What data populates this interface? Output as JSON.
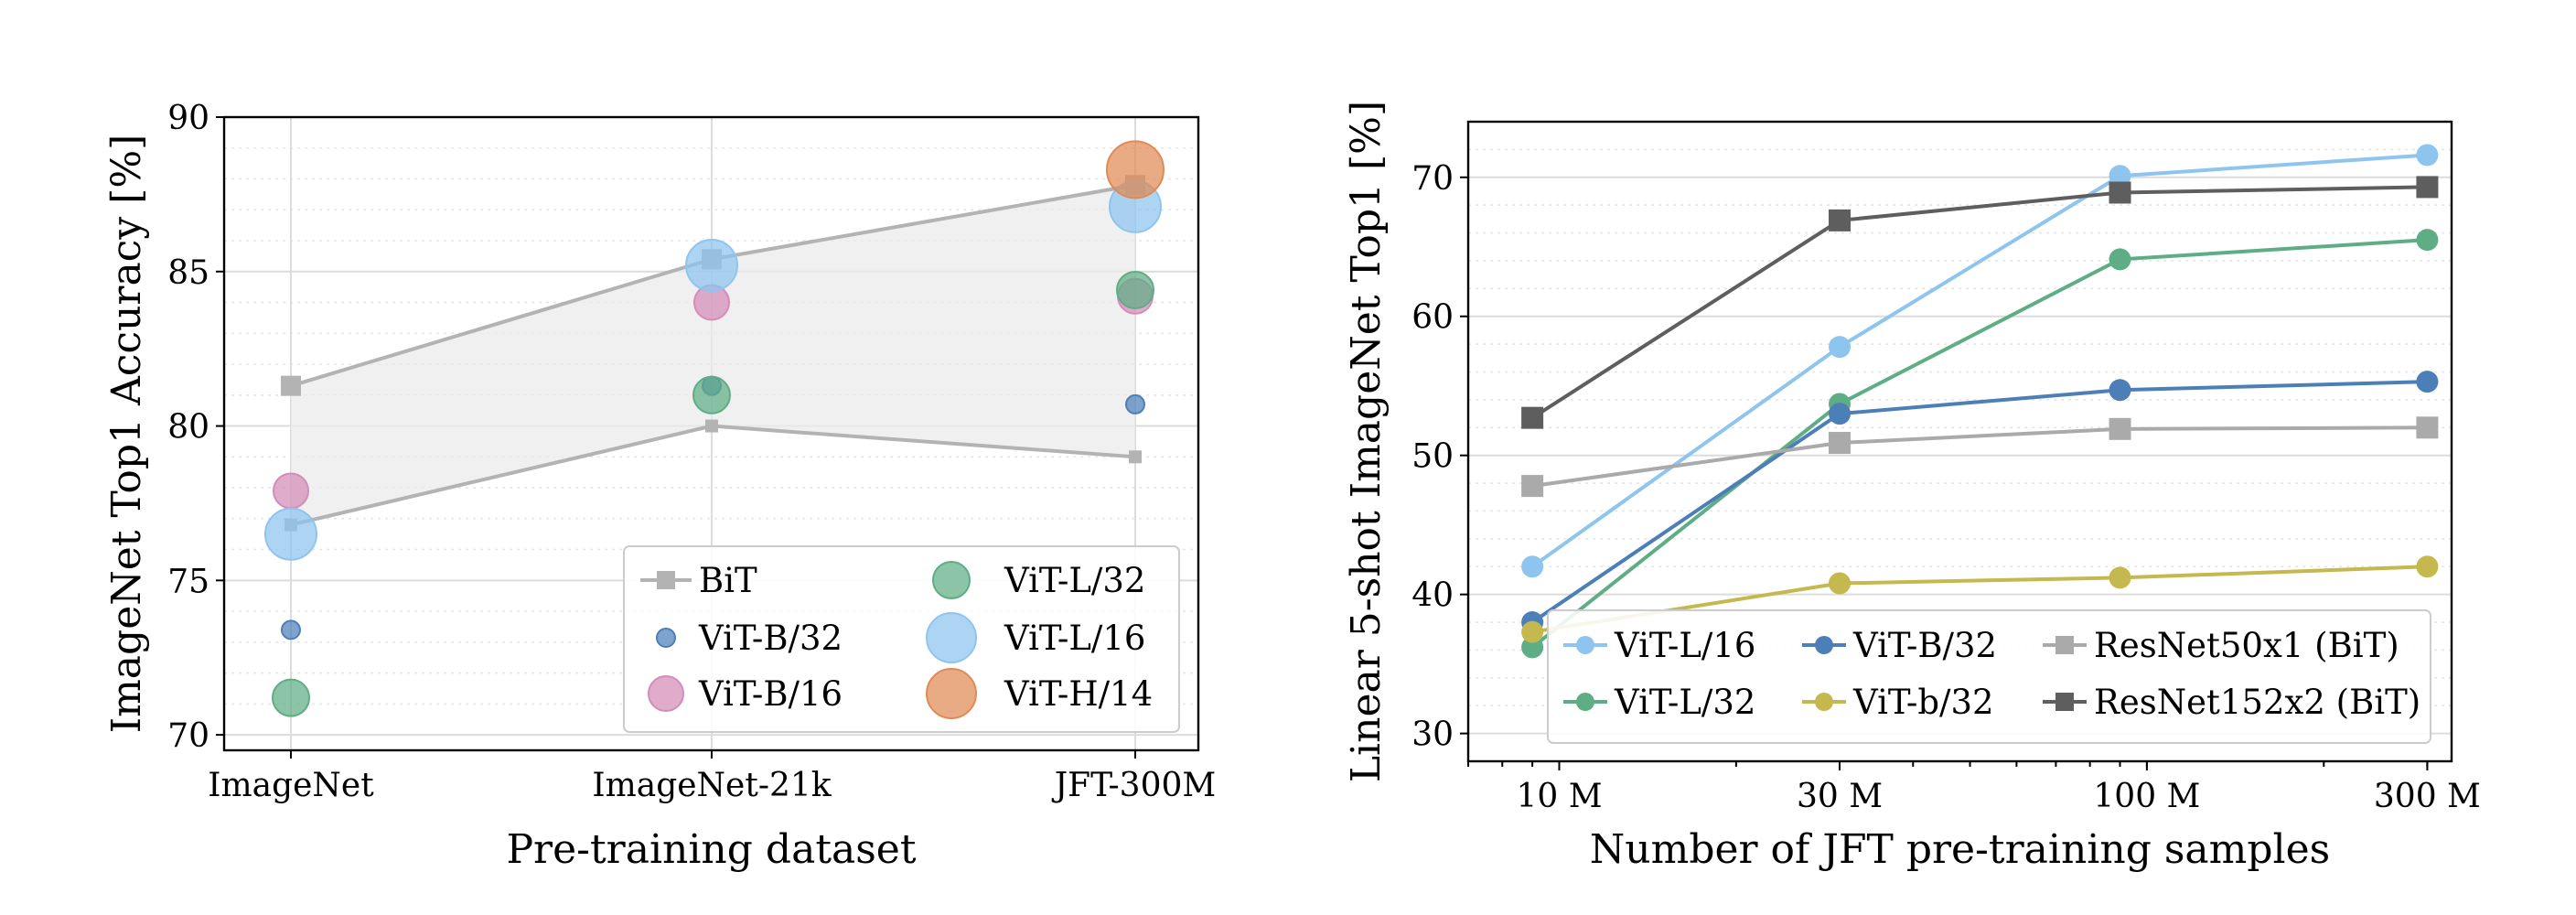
{
  "chart_data": [
    {
      "type": "scatter",
      "xlabel": "Pre-training dataset",
      "ylabel": "ImageNet Top1 Accuracy [%]",
      "categories": [
        "ImageNet",
        "ImageNet-21k",
        "JFT-300M"
      ],
      "ylim": [
        69.5,
        90
      ],
      "yticks": [
        70,
        75,
        80,
        85,
        90
      ],
      "grid": true,
      "legend_position": "bottom-right",
      "bit_band": {
        "name": "BiT",
        "color": "#b3b3b3",
        "upper": [
          81.3,
          85.4,
          87.8
        ],
        "lower": [
          76.8,
          80.0,
          79.0
        ]
      },
      "series": [
        {
          "name": "ViT-B/32",
          "color": "#4c7fb8",
          "size": "small",
          "values": [
            73.4,
            81.3,
            80.7
          ]
        },
        {
          "name": "ViT-B/16",
          "color": "#d48cb9",
          "size": "medium-small",
          "values": [
            77.9,
            84.0,
            84.2
          ]
        },
        {
          "name": "ViT-L/32",
          "color": "#5fad85",
          "size": "medium",
          "values": [
            71.2,
            81.0,
            84.4
          ]
        },
        {
          "name": "ViT-L/16",
          "color": "#8ec5ef",
          "size": "large",
          "values": [
            76.5,
            85.2,
            87.1
          ]
        },
        {
          "name": "ViT-H/14",
          "color": "#e08a55",
          "size": "largest",
          "values": [
            null,
            null,
            88.3
          ]
        }
      ],
      "legend": [
        {
          "label": "BiT",
          "series": "BiT"
        },
        {
          "label": "ViT-B/32",
          "series": "ViT-B/32"
        },
        {
          "label": "ViT-B/16",
          "series": "ViT-B/16"
        },
        {
          "label": "ViT-L/32",
          "series": "ViT-L/32"
        },
        {
          "label": "ViT-L/16",
          "series": "ViT-L/16"
        },
        {
          "label": "ViT-H/14",
          "series": "ViT-H/14"
        }
      ]
    },
    {
      "type": "line",
      "xlabel": "Number of JFT pre-training samples",
      "ylabel": "Linear 5-shot ImageNet Top1 [%]",
      "x_scale": "log",
      "x": [
        9000000,
        30000000,
        90000000,
        300000000
      ],
      "xlim": [
        7000000,
        330000000
      ],
      "xticks": [
        10000000,
        30000000,
        100000000,
        300000000
      ],
      "xtick_labels": [
        "10 M",
        "30 M",
        "100 M",
        "300 M"
      ],
      "ylim": [
        28,
        74
      ],
      "yticks": [
        30,
        40,
        50,
        60,
        70
      ],
      "grid": true,
      "legend_position": "bottom-right",
      "series": [
        {
          "name": "ViT-L/16",
          "color": "#8ec5ef",
          "marker": "circle",
          "values": [
            42.0,
            57.8,
            70.1,
            71.6
          ]
        },
        {
          "name": "ViT-L/32",
          "color": "#5fad85",
          "marker": "circle",
          "values": [
            36.2,
            53.7,
            64.1,
            65.5
          ]
        },
        {
          "name": "ViT-B/32",
          "color": "#4c7fb8",
          "marker": "circle",
          "values": [
            38.0,
            53.0,
            54.7,
            55.3
          ]
        },
        {
          "name": "ViT-b/32",
          "color": "#c4b84e",
          "marker": "circle",
          "values": [
            37.3,
            40.8,
            41.2,
            42.0
          ]
        },
        {
          "name": "ResNet50x1 (BiT)",
          "color": "#aaaaaa",
          "marker": "square",
          "values": [
            47.8,
            50.9,
            51.9,
            52.0
          ]
        },
        {
          "name": "ResNet152x2 (BiT)",
          "color": "#5e5e5e",
          "marker": "square",
          "values": [
            52.7,
            66.9,
            68.9,
            69.3
          ]
        }
      ],
      "legend": [
        {
          "label": "ViT-L/16",
          "series": "ViT-L/16"
        },
        {
          "label": "ViT-L/32",
          "series": "ViT-L/32"
        },
        {
          "label": "ViT-B/32",
          "series": "ViT-B/32"
        },
        {
          "label": "ViT-b/32",
          "series": "ViT-b/32"
        },
        {
          "label": "ResNet50x1 (BiT)",
          "series": "ResNet50x1 (BiT)"
        },
        {
          "label": "ResNet152x2 (BiT)",
          "series": "ResNet152x2 (BiT)"
        }
      ]
    }
  ]
}
